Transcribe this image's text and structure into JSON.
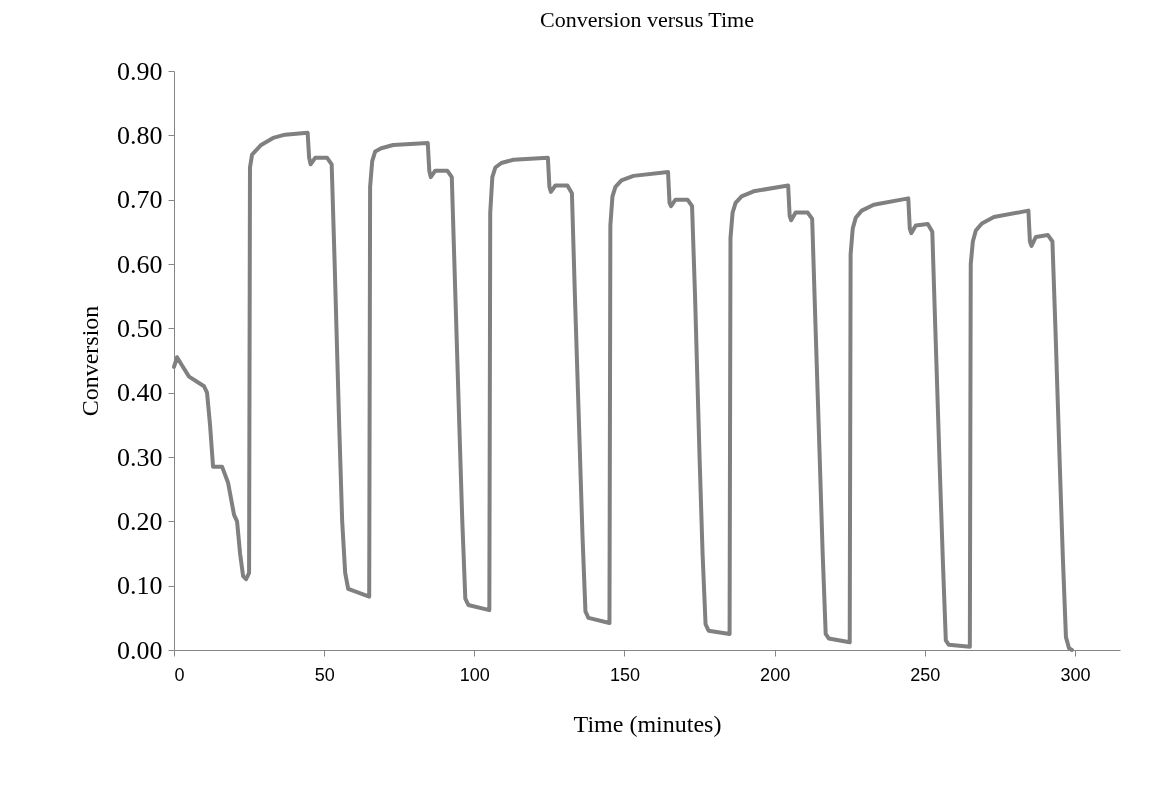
{
  "chart_data": {
    "type": "line",
    "title": "Conversion versus Time",
    "xlabel": "Time (minutes)",
    "ylabel": "Conversion",
    "xlim": [
      0,
      315
    ],
    "xticks": [
      0,
      50,
      100,
      150,
      200,
      250,
      300
    ],
    "ylim": [
      0,
      0.9
    ],
    "yticks": [
      {
        "value": 0,
        "label": "0.00"
      },
      {
        "value": 0.1,
        "label": "0.10"
      },
      {
        "value": 0.2,
        "label": "0.20"
      },
      {
        "value": 0.3,
        "label": "0.30"
      },
      {
        "value": 0.4,
        "label": "0.40"
      },
      {
        "value": 0.5,
        "label": "0.50"
      },
      {
        "value": 0.6,
        "label": "0.60"
      },
      {
        "value": 0.7,
        "label": "0.70"
      },
      {
        "value": 0.8,
        "label": "0.80"
      },
      {
        "value": 0.9,
        "label": "0.90"
      }
    ],
    "series": [
      {
        "color": "#808080",
        "x": [
          0,
          1,
          3,
          5,
          10,
          11,
          12,
          13,
          16,
          18,
          20,
          21,
          22,
          23,
          24,
          25,
          25.3,
          26,
          27,
          29,
          33,
          37,
          44.5,
          45,
          45.5,
          47,
          51,
          52.5,
          53.5,
          55,
          56,
          57,
          58,
          65,
          65.3,
          66,
          67,
          69,
          73,
          84.5,
          85,
          85.5,
          87,
          91,
          92.5,
          93.5,
          95,
          96,
          97,
          98,
          105,
          105.3,
          106,
          107,
          109,
          113,
          124.5,
          125,
          125.5,
          127,
          131,
          132.5,
          133.5,
          135,
          136,
          137,
          138,
          145,
          145.3,
          146,
          147,
          149,
          153,
          164.5,
          165,
          165.5,
          167,
          171,
          172.5,
          173.5,
          175,
          176,
          177,
          178,
          185,
          185.3,
          186,
          187,
          189,
          193,
          204.5,
          205,
          205.5,
          207,
          211,
          212.5,
          213.5,
          215,
          216,
          217,
          218,
          225,
          225.3,
          226,
          227,
          229,
          233,
          244.5,
          245,
          245.5,
          247,
          251,
          252.5,
          253.5,
          255,
          256,
          257,
          258,
          265,
          265.3,
          266,
          267,
          269,
          273,
          284.5,
          285,
          285.5,
          287,
          291,
          292.5,
          293.5,
          295,
          296,
          297,
          298,
          299
        ],
        "values": [
          0.44,
          0.455,
          0.44,
          0.425,
          0.41,
          0.4,
          0.35,
          0.285,
          0.285,
          0.26,
          0.21,
          0.2,
          0.15,
          0.115,
          0.11,
          0.12,
          0.75,
          0.77,
          0.775,
          0.785,
          0.796,
          0.801,
          0.804,
          0.765,
          0.755,
          0.765,
          0.765,
          0.755,
          0.6,
          0.35,
          0.2,
          0.12,
          0.095,
          0.083,
          0.72,
          0.76,
          0.775,
          0.78,
          0.785,
          0.788,
          0.745,
          0.735,
          0.745,
          0.745,
          0.735,
          0.58,
          0.35,
          0.2,
          0.08,
          0.07,
          0.062,
          0.68,
          0.735,
          0.75,
          0.757,
          0.762,
          0.765,
          0.72,
          0.712,
          0.722,
          0.722,
          0.71,
          0.55,
          0.33,
          0.18,
          0.06,
          0.05,
          0.042,
          0.66,
          0.705,
          0.72,
          0.73,
          0.737,
          0.743,
          0.695,
          0.69,
          0.7,
          0.7,
          0.69,
          0.55,
          0.3,
          0.15,
          0.04,
          0.03,
          0.025,
          0.64,
          0.68,
          0.695,
          0.705,
          0.713,
          0.722,
          0.675,
          0.668,
          0.68,
          0.68,
          0.67,
          0.52,
          0.3,
          0.15,
          0.025,
          0.018,
          0.012,
          0.615,
          0.655,
          0.672,
          0.683,
          0.692,
          0.702,
          0.655,
          0.648,
          0.66,
          0.662,
          0.65,
          0.5,
          0.28,
          0.14,
          0.015,
          0.008,
          0.005,
          0.6,
          0.635,
          0.652,
          0.663,
          0.673,
          0.683,
          0.635,
          0.628,
          0.642,
          0.645,
          0.635,
          0.5,
          0.28,
          0.14,
          0.02,
          0.003,
          0
        ]
      }
    ]
  }
}
